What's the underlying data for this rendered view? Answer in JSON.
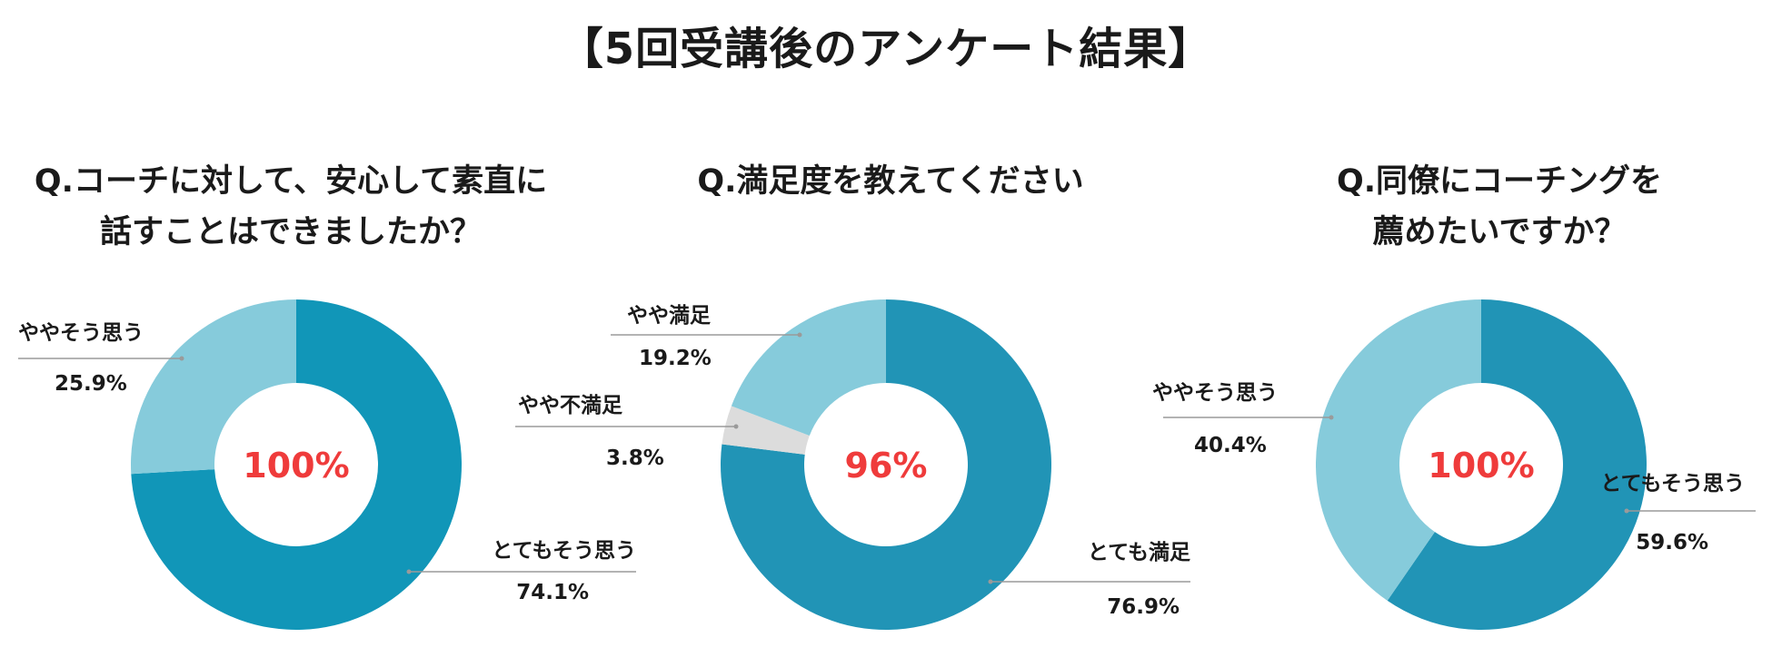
{
  "page": {
    "title": "【5回受講後のアンケート結果】"
  },
  "chart_data": [
    {
      "type": "pie",
      "title_lines": [
        "Q.コーチに対して、安心して素直に",
        "話すことはできましたか？"
      ],
      "center_label": "100%",
      "slices": [
        {
          "name": "とてもそう思う",
          "value": 74.1,
          "label": "74.1%",
          "color": "#1196b8"
        },
        {
          "name": "ややそう思う",
          "value": 25.9,
          "label": "25.9%",
          "color": "#86cbdb"
        }
      ],
      "legend": "callout labels beside slices"
    },
    {
      "type": "pie",
      "title_lines": [
        "Q.満足度を教えてください"
      ],
      "center_label": "96%",
      "slices": [
        {
          "name": "とても満足",
          "value": 76.9,
          "label": "76.9%",
          "color": "#2194b6"
        },
        {
          "name": "やや不満足",
          "value": 3.8,
          "label": "3.8%",
          "color": "#dcdcdc"
        },
        {
          "name": "やや満足",
          "value": 19.2,
          "label": "19.2%",
          "color": "#86cbdb"
        }
      ],
      "legend": "callout labels beside slices"
    },
    {
      "type": "pie",
      "title_lines": [
        "Q.同僚にコーチングを",
        "薦めたいですか？"
      ],
      "center_label": "100%",
      "slices": [
        {
          "name": "とてもそう思う",
          "value": 59.6,
          "label": "59.6%",
          "color": "#2194b6"
        },
        {
          "name": "ややそう思う",
          "value": 40.4,
          "label": "40.4%",
          "color": "#86cbdb"
        }
      ],
      "legend": "callout labels beside slices"
    }
  ],
  "theme": {
    "center_text_color": "#ef3b3b",
    "leader_color": "#9a9a9a"
  }
}
